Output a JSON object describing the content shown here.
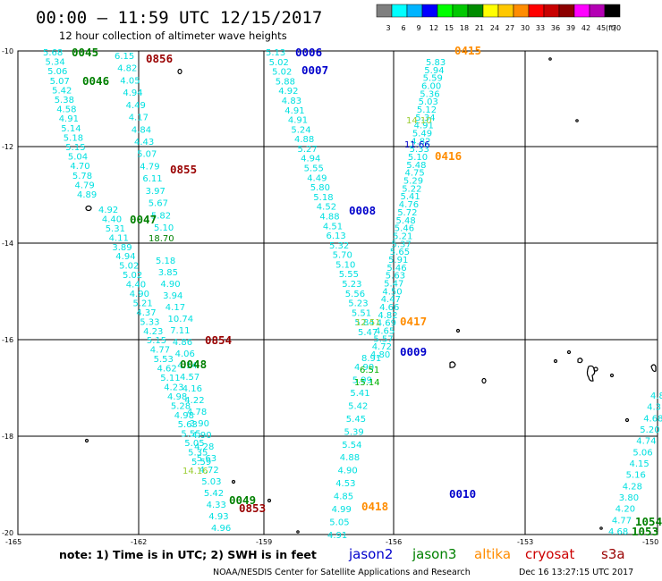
{
  "header": {
    "title": "00:00 – 11:59 UTC 12/15/2017",
    "subtitle": "12 hour collection of altimeter wave heights"
  },
  "colorbar": {
    "colors": [
      "#7f7f7f",
      "#00ffff",
      "#00b4ff",
      "#0000ff",
      "#00ff00",
      "#00c800",
      "#008c00",
      "#ffff00",
      "#ffc800",
      "#ff8c00",
      "#ff0000",
      "#c80000",
      "#8c0000",
      "#ff00ff",
      "#b400b4",
      "#000000"
    ],
    "ticks": [
      "3",
      "6",
      "9",
      "12",
      "15",
      "18",
      "21",
      "24",
      "27",
      "30",
      "33",
      "36",
      "39",
      "42",
      "45",
      "70"
    ],
    "unit": "(ft)"
  },
  "axes": {
    "lat": [
      "-10",
      "-12",
      "-14",
      "-16",
      "-18",
      "-20"
    ],
    "lon": [
      "-165",
      "-162",
      "-159",
      "-156",
      "-153",
      "-150"
    ]
  },
  "series_colors": {
    "cyan": "#00e0e0",
    "jason2": "#0000cc",
    "jason3": "#008000",
    "altika": "#ff8c00",
    "cryosat": "#990000",
    "s3a": "#b00000",
    "green": "#00b000",
    "yellowgreen": "#9acd32"
  },
  "tracks": [
    {
      "values": [
        "5.68",
        "5.34",
        "5.06",
        "5.07",
        "5.42",
        "5.38",
        "4.58",
        "4.91",
        "5.14",
        "5.18",
        "5.15",
        "5.04",
        "4.70",
        "5.78",
        "4.79",
        "4.89"
      ]
    },
    {
      "values": [
        "6.15",
        "4.82",
        "4.05",
        "4.94",
        "4.49",
        "4.17",
        "4.84",
        "4.43",
        "5.07",
        "4.79",
        "6.11",
        "3.97",
        "5.67",
        "5.82",
        "5.10"
      ]
    },
    {
      "values": [
        "4.92",
        "4.40",
        "5.31",
        "4.11",
        "3.89",
        "4.94",
        "5.02",
        "5.02",
        "4.40",
        "4.90",
        "5.21",
        "4.37",
        "5.33",
        "4.23",
        "5.15",
        "4.77",
        "5.53",
        "4.62",
        "5.11",
        "4.23",
        "4.98",
        "5.28",
        "4.98",
        "5.63",
        "5.55",
        "5.05",
        "5.35",
        "5.59"
      ]
    },
    {
      "values": [
        "5.18",
        "3.85",
        "4.90",
        "3.94",
        "4.17",
        "10.74",
        "7.11",
        "4.86",
        "4.06",
        "4.14",
        "4.57",
        "4.16",
        "4.22",
        "4.78",
        "3.90",
        "4.90",
        "4.28",
        "5.63",
        "4.72",
        "5.03",
        "5.42",
        "4.33",
        "4.93",
        "4.96"
      ]
    },
    {
      "values": [
        "5.13",
        "5.02",
        "5.02",
        "5.88",
        "4.92",
        "4.83",
        "4.91",
        "4.91",
        "5.24",
        "4.88",
        "5.27",
        "4.94",
        "5.55",
        "4.49",
        "5.80",
        "5.18",
        "4.52",
        "4.88",
        "4.51",
        "6.13",
        "5.32",
        "5.70",
        "5.10",
        "5.55",
        "5.23",
        "5.56",
        "5.23",
        "5.51",
        "5.84",
        "5.47"
      ]
    },
    {
      "values": [
        "5.83",
        "5.94",
        "5.59",
        "6.00",
        "5.36",
        "5.03",
        "5.12",
        "5.34",
        "4.91",
        "5.49",
        "4.82",
        "5.33",
        "5.10",
        "5.48",
        "4.75",
        "5.29",
        "5.22",
        "5.41",
        "4.76",
        "5.72",
        "5.48",
        "5.46",
        "5.21",
        "5.37",
        "5.65",
        "5.91",
        "5.46",
        "5.63",
        "5.47",
        "4.50",
        "4.47",
        "4.66",
        "4.82",
        "4.69",
        "4.65",
        "5.57",
        "4.72",
        "4.80"
      ]
    },
    {
      "values": [
        "4.90",
        "5.99",
        "5.41",
        "5.42",
        "5.45",
        "5.39",
        "5.54",
        "4.88",
        "4.90",
        "4.53",
        "4.85",
        "4.99",
        "5.05",
        "4.91"
      ]
    },
    {
      "values": [
        "4.8",
        "4.3",
        "4.68",
        "5.20",
        "4.74",
        "5.06",
        "4.15",
        "5.16",
        "4.28",
        "3.80",
        "4.20",
        "4.77",
        "4.68"
      ]
    }
  ],
  "highlight_values": {
    "v1870": "18.70",
    "v1410a": "14.10",
    "v1166": "11.66",
    "v1251": "12.51",
    "v651": "6.51",
    "v1514": "15.14",
    "v1416": "14.16",
    "v891": "8.91"
  },
  "pass_labels": {
    "p0045": "0045",
    "p0856": "0856",
    "p0046": "0046",
    "p0006": "0006",
    "p0007": "0007",
    "p0415": "0415",
    "p0416": "0416",
    "p0855": "0855",
    "p0008": "0008",
    "p0047": "0047",
    "p0417": "0417",
    "p0854": "0854",
    "p0009": "0009",
    "p0048": "0048",
    "p0010": "0010",
    "p0049": "0049",
    "p0853": "0853",
    "p0418": "0418",
    "p1054": "1054",
    "p1053": "1053"
  },
  "footer": {
    "note": "note:  1) Time is in UTC;  2) SWH is in feet",
    "sat_jason2": "jason2",
    "sat_jason3": "jason3",
    "sat_altika": "altika",
    "sat_cryosat": "cryosat",
    "sat_s3a": "s3a",
    "credit": "NOAA/NESDIS Center for Satellite Applications and Research",
    "timestamp": "Dec 16 13:27:15 UTC 2017"
  }
}
